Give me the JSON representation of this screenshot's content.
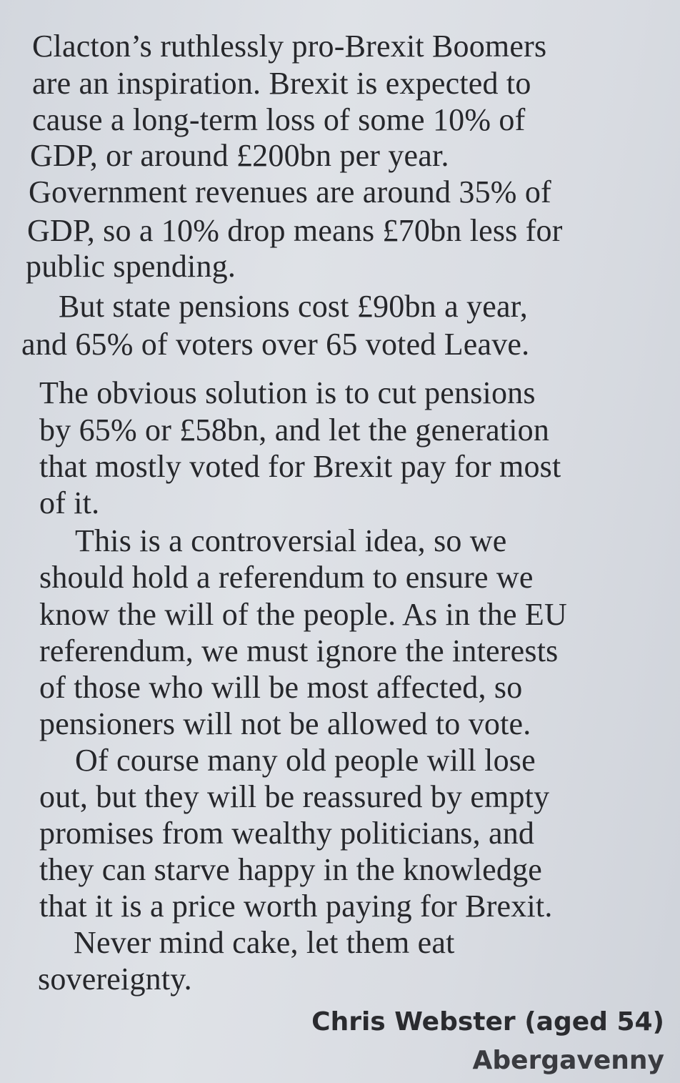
{
  "letter": {
    "lines": [
      "Clacton’s ruthlessly pro-Brexit Boomers",
      "are an inspiration. Brexit is expected to",
      "cause a long-term loss of some 10% of",
      "GDP, or around £200bn per year.",
      "Government revenues are around 35% of",
      "GDP, so a 10% drop means £70bn less for",
      "public spending.",
      "But state pensions cost £90bn a year,",
      "and 65% of voters over 65 voted Leave.",
      "The obvious solution is to cut pensions",
      "by 65% or £58bn, and let the generation",
      "that mostly voted for Brexit pay for most",
      "of it.",
      "This is a controversial idea, so we",
      "should hold a referendum to ensure we",
      "know the will of the people. As in the EU",
      "referendum, we must ignore the interests",
      "of those who will be most affected, so",
      "pensioners will not be allowed to vote.",
      "Of course many old people will lose",
      "out, but they will be reassured by empty",
      "promises from wealthy politicians, and",
      "they can starve happy in the knowledge",
      "that it is a price worth paying for Brexit.",
      "Never mind cake, let them eat",
      "sovereignty."
    ],
    "author": "Chris Webster (aged 54)",
    "location": "Abergavenny"
  }
}
